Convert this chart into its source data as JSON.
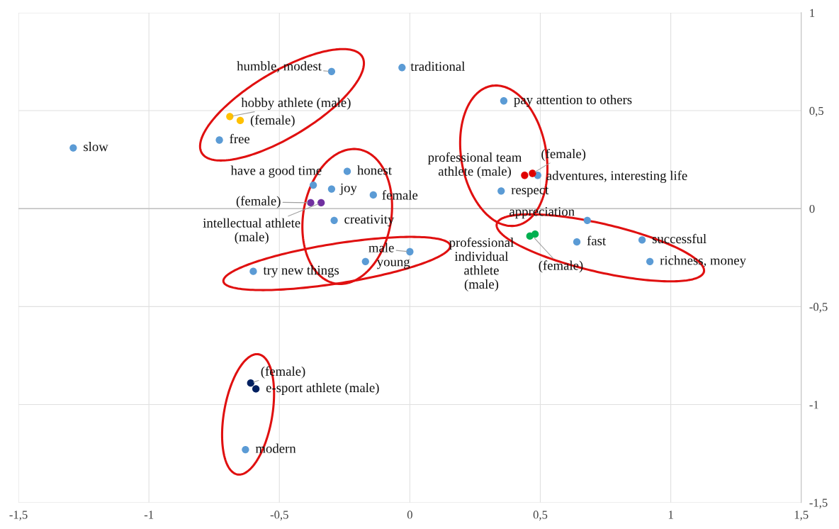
{
  "chart_data": {
    "type": "scatter",
    "series": [
      {
        "color": "#5b9bd5",
        "x": [
          -1.29,
          -0.3,
          -0.03,
          -0.73,
          0.36,
          0.49,
          0.35,
          -0.24,
          -0.37,
          -0.3,
          -0.14,
          -0.29,
          0.68,
          0.64,
          0.89,
          0.92,
          0.0,
          -0.17,
          -0.6,
          -0.63
        ],
        "values": [
          0.31,
          0.7,
          0.72,
          0.35,
          0.55,
          0.17,
          0.09,
          0.19,
          0.12,
          0.1,
          0.07,
          -0.06,
          -0.06,
          -0.17,
          -0.16,
          -0.27,
          -0.22,
          -0.27,
          -0.32,
          -1.23
        ]
      },
      {
        "color": "#ffc000",
        "x": [
          -0.69,
          -0.65
        ],
        "values": [
          0.47,
          0.45
        ]
      },
      {
        "color": "#e00000",
        "x": [
          0.44,
          0.47
        ],
        "values": [
          0.17,
          0.18
        ]
      },
      {
        "color": "#7030a0",
        "x": [
          -0.38,
          -0.34
        ],
        "values": [
          0.03,
          0.03
        ]
      },
      {
        "color": "#00b050",
        "x": [
          0.46,
          0.48
        ],
        "values": [
          -0.14,
          -0.13
        ]
      },
      {
        "color": "#002060",
        "x": [
          -0.61,
          -0.59
        ],
        "values": [
          -0.89,
          -0.92
        ]
      }
    ],
    "annotations": [
      {
        "text": "slow",
        "x": -1.29,
        "y": 0.31
      },
      {
        "text": "humble, modest",
        "x": -0.3,
        "y": 0.7
      },
      {
        "text": "traditional",
        "x": -0.03,
        "y": 0.72
      },
      {
        "text": "hobby athlete (male)",
        "x": -0.69,
        "y": 0.47
      },
      {
        "text": "(female)",
        "x": -0.65,
        "y": 0.45
      },
      {
        "text": "free",
        "x": -0.73,
        "y": 0.35
      },
      {
        "text": "pay attention to others",
        "x": 0.36,
        "y": 0.55
      },
      {
        "text": "professional team athlete (male)",
        "x": 0.44,
        "y": 0.17
      },
      {
        "text": "(female)",
        "x": 0.47,
        "y": 0.18
      },
      {
        "text": "adventures, interesting life",
        "x": 0.49,
        "y": 0.17
      },
      {
        "text": "respect",
        "x": 0.35,
        "y": 0.09
      },
      {
        "text": "honest",
        "x": -0.24,
        "y": 0.19
      },
      {
        "text": "have a good time",
        "x": -0.37,
        "y": 0.12
      },
      {
        "text": "joy",
        "x": -0.3,
        "y": 0.1
      },
      {
        "text": "female",
        "x": -0.14,
        "y": 0.07
      },
      {
        "text": "(female)",
        "x": -0.38,
        "y": 0.03
      },
      {
        "text": "intellectual athlete (male)",
        "x": -0.34,
        "y": 0.03
      },
      {
        "text": "creativity",
        "x": -0.29,
        "y": -0.06
      },
      {
        "text": "appreciation",
        "x": 0.68,
        "y": -0.06
      },
      {
        "text": "professional individual athlete (male)",
        "x": 0.47,
        "y": -0.14
      },
      {
        "text": "(female)",
        "x": 0.47,
        "y": -0.14
      },
      {
        "text": "fast",
        "x": 0.64,
        "y": -0.17
      },
      {
        "text": "successful",
        "x": 0.89,
        "y": -0.16
      },
      {
        "text": "richness, money",
        "x": 0.92,
        "y": -0.27
      },
      {
        "text": "male",
        "x": 0.0,
        "y": -0.22
      },
      {
        "text": "young",
        "x": -0.17,
        "y": -0.27
      },
      {
        "text": "try new things",
        "x": -0.6,
        "y": -0.32
      },
      {
        "text": "(female)",
        "x": -0.61,
        "y": -0.89
      },
      {
        "text": "e-sport athlete (male)",
        "x": -0.59,
        "y": -0.92
      },
      {
        "text": "modern",
        "x": -0.63,
        "y": -1.23
      }
    ],
    "xlim": [
      -1.5,
      1.5
    ],
    "ylim": [
      -1.5,
      1
    ],
    "xticks": [
      {
        "value": -1.5,
        "label": "-1,5"
      },
      {
        "value": -1,
        "label": "-1"
      },
      {
        "value": -0.5,
        "label": "-0,5"
      },
      0,
      {
        "value": 0.5,
        "label": "0,5"
      },
      1,
      {
        "value": 1.5,
        "label": "1,5"
      }
    ],
    "yticks": [
      {
        "value": -1.5,
        "label": "-1,5"
      },
      {
        "value": -1,
        "label": "-1"
      },
      {
        "value": -0.5,
        "label": "-0,5"
      },
      0,
      {
        "value": 0.5,
        "label": "0,5"
      },
      1
    ],
    "ref_lines": [
      {
        "axis": "y",
        "value": 0,
        "color": "#bfbfbf"
      }
    ],
    "grid": true,
    "marker": "circle"
  }
}
